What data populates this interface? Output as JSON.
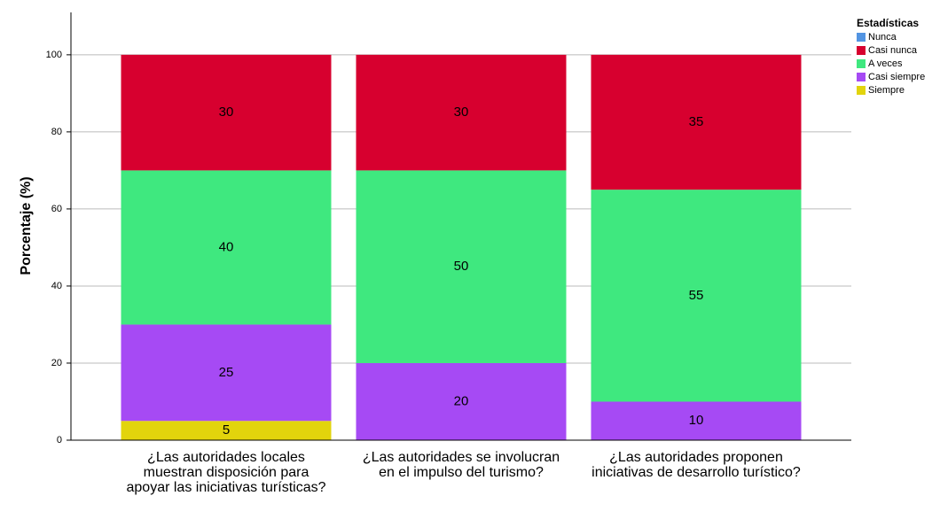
{
  "chart_data": {
    "type": "stacked_bar",
    "y_label": "Porcentaje (%)",
    "legend_title": "Estadísticas",
    "legend": "right",
    "grid": true,
    "categories": [
      "¿Las autoridades locales muestran disposición para apoyar las iniciativas turísticas?",
      "¿Las autoridades se involucran en el impulso del turismo?",
      "¿Las autoridades proponen iniciativas de desarrollo turístico?"
    ],
    "series": [
      {
        "name": "Nunca",
        "color": "#5294e2",
        "values": [
          0,
          0,
          0
        ]
      },
      {
        "name": "Casi nunca",
        "color": "#d7002f",
        "values": [
          30,
          30,
          35
        ]
      },
      {
        "name": "A veces",
        "color": "#3fe87f",
        "values": [
          40,
          50,
          55
        ]
      },
      {
        "name": "Casi siempre",
        "color": "#a64af4",
        "values": [
          25,
          20,
          10
        ]
      },
      {
        "name": "Siempre",
        "color": "#e2d40c",
        "values": [
          5,
          0,
          0
        ]
      }
    ],
    "ylim": [
      0,
      111
    ],
    "yticks": [
      0,
      20,
      40,
      60,
      80,
      100
    ]
  }
}
